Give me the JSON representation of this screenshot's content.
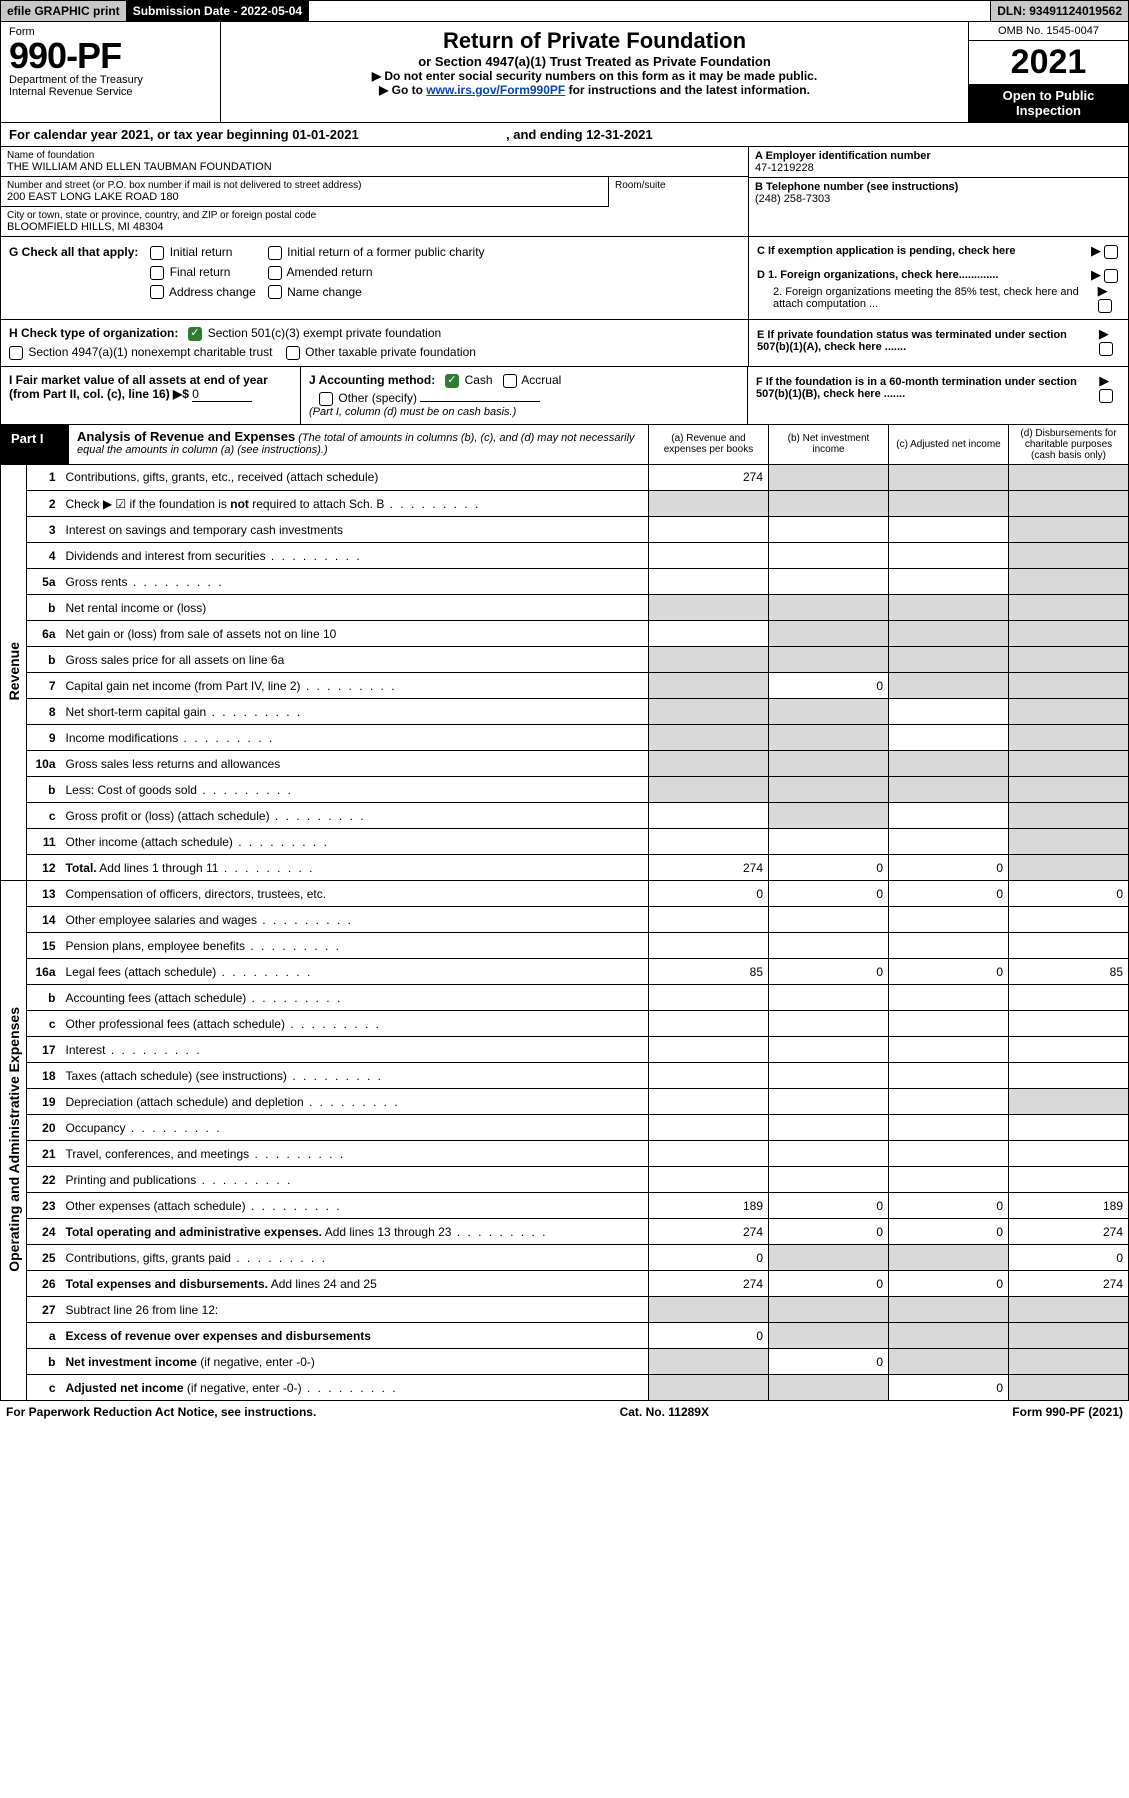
{
  "topbar": {
    "efile": "efile GRAPHIC print",
    "subdate_label": "Submission Date - 2022-05-04",
    "dln": "DLN: 93491124019562"
  },
  "header": {
    "form_label": "Form",
    "form_no": "990-PF",
    "dept": "Department of the Treasury",
    "irs": "Internal Revenue Service",
    "title": "Return of Private Foundation",
    "subtitle": "or Section 4947(a)(1) Trust Treated as Private Foundation",
    "note1": "▶ Do not enter social security numbers on this form as it may be made public.",
    "note2": "▶ Go to www.irs.gov/Form990PF for instructions and the latest information.",
    "omb": "OMB No. 1545-0047",
    "year": "2021",
    "open": "Open to Public Inspection"
  },
  "calyear": {
    "text1": "For calendar year 2021, or tax year beginning 01-01-2021",
    "text2": ", and ending 12-31-2021"
  },
  "id": {
    "name_lbl": "Name of foundation",
    "name": "THE WILLIAM AND ELLEN TAUBMAN FOUNDATION",
    "addr_lbl": "Number and street (or P.O. box number if mail is not delivered to street address)",
    "addr": "200 EAST LONG LAKE ROAD 180",
    "room_lbl": "Room/suite",
    "city_lbl": "City or town, state or province, country, and ZIP or foreign postal code",
    "city": "BLOOMFIELD HILLS, MI  48304",
    "ein_lbl": "A Employer identification number",
    "ein": "47-1219228",
    "tel_lbl": "B Telephone number (see instructions)",
    "tel": "(248) 258-7303",
    "pending": "C If exemption application is pending, check here",
    "d1": "D 1. Foreign organizations, check here.............",
    "d2": "2. Foreign organizations meeting the 85% test, check here and attach computation ...",
    "e": "E  If private foundation status was terminated under section 507(b)(1)(A), check here .......",
    "f": "F  If the foundation is in a 60-month termination under section 507(b)(1)(B), check here .......",
    "g_lbl": "G Check all that apply:",
    "g_opts": [
      "Initial return",
      "Initial return of a former public charity",
      "Final return",
      "Amended return",
      "Address change",
      "Name change"
    ],
    "h_lbl": "H Check type of organization:",
    "h1": "Section 501(c)(3) exempt private foundation",
    "h2": "Section 4947(a)(1) nonexempt charitable trust",
    "h3": "Other taxable private foundation",
    "i_lbl": "I Fair market value of all assets at end of year (from Part II, col. (c), line 16)  ▶$",
    "i_val": "0",
    "j_lbl": "J Accounting method:",
    "j1": "Cash",
    "j2": "Accrual",
    "j3": "Other (specify)",
    "j_note": "(Part I, column (d) must be on cash basis.)"
  },
  "part1": {
    "label": "Part I",
    "title": "Analysis of Revenue and Expenses",
    "title_note": "(The total of amounts in columns (b), (c), and (d) may not necessarily equal the amounts in column (a) (see instructions).)",
    "cols": {
      "a": "(a)   Revenue and expenses per books",
      "b": "(b)   Net investment income",
      "c": "(c)   Adjusted net income",
      "d": "(d)   Disbursements for charitable purposes (cash basis only)"
    }
  },
  "sections": {
    "revenue": "Revenue",
    "expenses": "Operating and Administrative Expenses"
  },
  "rows": [
    {
      "n": "1",
      "d": "Contributions, gifts, grants, etc., received (attach schedule)",
      "a": "274",
      "b": "g",
      "c": "g",
      "dd": "g"
    },
    {
      "n": "2",
      "d": "Check ▶ ☑ if the foundation is <b>not</b> required to attach Sch. B",
      "a": "g",
      "b": "g",
      "c": "g",
      "dd": "g",
      "dots": true
    },
    {
      "n": "3",
      "d": "Interest on savings and temporary cash investments",
      "a": "",
      "b": "",
      "c": "",
      "dd": "g"
    },
    {
      "n": "4",
      "d": "Dividends and interest from securities",
      "a": "",
      "b": "",
      "c": "",
      "dd": "g",
      "dots": true
    },
    {
      "n": "5a",
      "d": "Gross rents",
      "a": "",
      "b": "",
      "c": "",
      "dd": "g",
      "dots": true
    },
    {
      "n": "b",
      "d": "Net rental income or (loss)",
      "a": "g",
      "b": "g",
      "c": "g",
      "dd": "g"
    },
    {
      "n": "6a",
      "d": "Net gain or (loss) from sale of assets not on line 10",
      "a": "",
      "b": "g",
      "c": "g",
      "dd": "g"
    },
    {
      "n": "b",
      "d": "Gross sales price for all assets on line 6a",
      "a": "g",
      "b": "g",
      "c": "g",
      "dd": "g"
    },
    {
      "n": "7",
      "d": "Capital gain net income (from Part IV, line 2)",
      "a": "g",
      "b": "0",
      "c": "g",
      "dd": "g",
      "dots": true
    },
    {
      "n": "8",
      "d": "Net short-term capital gain",
      "a": "g",
      "b": "g",
      "c": "",
      "dd": "g",
      "dots": true
    },
    {
      "n": "9",
      "d": "Income modifications",
      "a": "g",
      "b": "g",
      "c": "",
      "dd": "g",
      "dots": true
    },
    {
      "n": "10a",
      "d": "Gross sales less returns and allowances",
      "a": "g",
      "b": "g",
      "c": "g",
      "dd": "g"
    },
    {
      "n": "b",
      "d": "Less: Cost of goods sold",
      "a": "g",
      "b": "g",
      "c": "g",
      "dd": "g",
      "dots": true
    },
    {
      "n": "c",
      "d": "Gross profit or (loss) (attach schedule)",
      "a": "",
      "b": "g",
      "c": "",
      "dd": "g",
      "dots": true
    },
    {
      "n": "11",
      "d": "Other income (attach schedule)",
      "a": "",
      "b": "",
      "c": "",
      "dd": "g",
      "dots": true
    },
    {
      "n": "12",
      "d": "<b>Total.</b> Add lines 1 through 11",
      "a": "274",
      "b": "0",
      "c": "0",
      "dd": "g",
      "dots": true
    }
  ],
  "exprows": [
    {
      "n": "13",
      "d": "Compensation of officers, directors, trustees, etc.",
      "a": "0",
      "b": "0",
      "c": "0",
      "dd": "0"
    },
    {
      "n": "14",
      "d": "Other employee salaries and wages",
      "a": "",
      "b": "",
      "c": "",
      "dd": "",
      "dots": true
    },
    {
      "n": "15",
      "d": "Pension plans, employee benefits",
      "a": "",
      "b": "",
      "c": "",
      "dd": "",
      "dots": true
    },
    {
      "n": "16a",
      "d": "Legal fees (attach schedule)",
      "a": "85",
      "b": "0",
      "c": "0",
      "dd": "85",
      "dots": true
    },
    {
      "n": "b",
      "d": "Accounting fees (attach schedule)",
      "a": "",
      "b": "",
      "c": "",
      "dd": "",
      "dots": true
    },
    {
      "n": "c",
      "d": "Other professional fees (attach schedule)",
      "a": "",
      "b": "",
      "c": "",
      "dd": "",
      "dots": true
    },
    {
      "n": "17",
      "d": "Interest",
      "a": "",
      "b": "",
      "c": "",
      "dd": "",
      "dots": true
    },
    {
      "n": "18",
      "d": "Taxes (attach schedule) (see instructions)",
      "a": "",
      "b": "",
      "c": "",
      "dd": "",
      "dots": true
    },
    {
      "n": "19",
      "d": "Depreciation (attach schedule) and depletion",
      "a": "",
      "b": "",
      "c": "",
      "dd": "g",
      "dots": true
    },
    {
      "n": "20",
      "d": "Occupancy",
      "a": "",
      "b": "",
      "c": "",
      "dd": "",
      "dots": true
    },
    {
      "n": "21",
      "d": "Travel, conferences, and meetings",
      "a": "",
      "b": "",
      "c": "",
      "dd": "",
      "dots": true
    },
    {
      "n": "22",
      "d": "Printing and publications",
      "a": "",
      "b": "",
      "c": "",
      "dd": "",
      "dots": true
    },
    {
      "n": "23",
      "d": "Other expenses (attach schedule)",
      "a": "189",
      "b": "0",
      "c": "0",
      "dd": "189",
      "dots": true
    },
    {
      "n": "24",
      "d": "<b>Total operating and administrative expenses.</b> Add lines 13 through 23",
      "a": "274",
      "b": "0",
      "c": "0",
      "dd": "274",
      "dots": true
    },
    {
      "n": "25",
      "d": "Contributions, gifts, grants paid",
      "a": "0",
      "b": "g",
      "c": "g",
      "dd": "0",
      "dots": true
    },
    {
      "n": "26",
      "d": "<b>Total expenses and disbursements.</b> Add lines 24 and 25",
      "a": "274",
      "b": "0",
      "c": "0",
      "dd": "274"
    },
    {
      "n": "27",
      "d": "Subtract line 26 from line 12:",
      "a": "g",
      "b": "g",
      "c": "g",
      "dd": "g"
    },
    {
      "n": "a",
      "d": "<b>Excess of revenue over expenses and disbursements</b>",
      "a": "0",
      "b": "g",
      "c": "g",
      "dd": "g"
    },
    {
      "n": "b",
      "d": "<b>Net investment income</b> (if negative, enter -0-)",
      "a": "g",
      "b": "0",
      "c": "g",
      "dd": "g"
    },
    {
      "n": "c",
      "d": "<b>Adjusted net income</b> (if negative, enter -0-)",
      "a": "g",
      "b": "g",
      "c": "0",
      "dd": "g",
      "dots": true
    }
  ],
  "footer": {
    "left": "For Paperwork Reduction Act Notice, see instructions.",
    "mid": "Cat. No. 11289X",
    "right": "Form 990-PF (2021)"
  },
  "colors": {
    "gray": "#d9d9d9",
    "topgray": "#c8c8c8",
    "green": "#2e7d32",
    "link": "#0645ad"
  }
}
